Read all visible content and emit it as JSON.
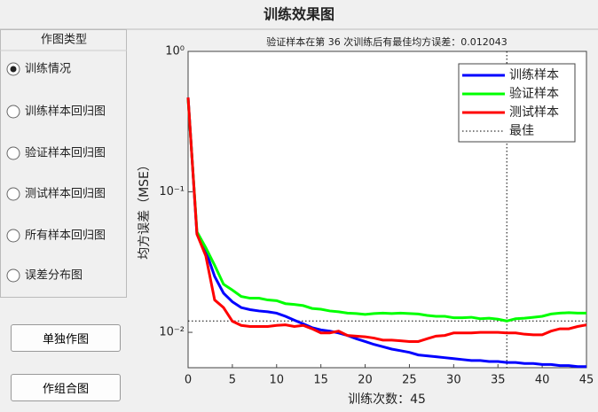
{
  "window_title": "训练效果图",
  "panel": {
    "title": "作图类型",
    "selected": 0,
    "options": [
      "训练情况",
      "训练样本回归图",
      "验证样本回归图",
      "测试样本回归图",
      "所有样本回归图",
      "误差分布图"
    ]
  },
  "buttons": [
    "单独作图",
    "作组合图"
  ],
  "chart_data": {
    "type": "line",
    "title": "验证样本在第 36 次训练后有最佳均方误差：0.012043",
    "x_label": "训练次数：45",
    "y_label": "均方误差（MSE）",
    "y_scale": "log",
    "x": [
      0,
      1,
      2,
      3,
      4,
      5,
      6,
      7,
      8,
      9,
      10,
      11,
      12,
      13,
      14,
      15,
      16,
      17,
      18,
      19,
      20,
      21,
      22,
      23,
      24,
      25,
      26,
      27,
      28,
      29,
      30,
      31,
      32,
      33,
      34,
      35,
      36,
      37,
      38,
      39,
      40,
      41,
      42,
      43,
      44,
      45
    ],
    "series": [
      {
        "name": "训练样本",
        "color": "#0000ff",
        "values": [
          0.47,
          0.05,
          0.038,
          0.025,
          0.019,
          0.0165,
          0.015,
          0.0145,
          0.0142,
          0.014,
          0.0137,
          0.013,
          0.0122,
          0.0115,
          0.0108,
          0.0104,
          0.0102,
          0.0099,
          0.0095,
          0.009,
          0.0086,
          0.0082,
          0.0079,
          0.0076,
          0.0074,
          0.0072,
          0.0069,
          0.0068,
          0.0067,
          0.0066,
          0.0065,
          0.0064,
          0.0063,
          0.0063,
          0.0062,
          0.0062,
          0.0061,
          0.0061,
          0.006,
          0.006,
          0.0059,
          0.0059,
          0.0058,
          0.0058,
          0.0057,
          0.0057
        ]
      },
      {
        "name": "验证样本",
        "color": "#00ff00",
        "values": [
          0.46,
          0.052,
          0.04,
          0.03,
          0.022,
          0.02,
          0.018,
          0.0175,
          0.0175,
          0.017,
          0.0168,
          0.016,
          0.0158,
          0.0155,
          0.0148,
          0.0146,
          0.0142,
          0.014,
          0.0137,
          0.0136,
          0.0134,
          0.0136,
          0.0137,
          0.0136,
          0.0137,
          0.0136,
          0.0135,
          0.0132,
          0.013,
          0.013,
          0.0127,
          0.0127,
          0.0128,
          0.0125,
          0.0126,
          0.0124,
          0.012043,
          0.0125,
          0.0126,
          0.0128,
          0.013,
          0.0135,
          0.0137,
          0.0138,
          0.0137,
          0.0137
        ]
      },
      {
        "name": "测试样本",
        "color": "#ff0000",
        "values": [
          0.47,
          0.05,
          0.035,
          0.017,
          0.015,
          0.012,
          0.0112,
          0.011,
          0.011,
          0.011,
          0.0112,
          0.0113,
          0.011,
          0.0112,
          0.0106,
          0.0099,
          0.0099,
          0.0102,
          0.0095,
          0.0094,
          0.0093,
          0.0091,
          0.0088,
          0.0088,
          0.0087,
          0.0086,
          0.0086,
          0.009,
          0.0094,
          0.0095,
          0.0099,
          0.0099,
          0.0099,
          0.01,
          0.01,
          0.01,
          0.0099,
          0.0099,
          0.0097,
          0.0096,
          0.0096,
          0.0102,
          0.0106,
          0.0106,
          0.011,
          0.0113
        ]
      }
    ],
    "best": {
      "name": "最佳",
      "x": 36,
      "y": 0.012043,
      "color": "#000000"
    },
    "xlim": [
      0,
      45
    ],
    "xticks": [
      0,
      5,
      10,
      15,
      20,
      25,
      30,
      35,
      40,
      45
    ],
    "ylim": [
      0.0056,
      1
    ],
    "yticks": [
      {
        "value": 1,
        "label": "10⁰"
      },
      {
        "value": 0.1,
        "label": "10⁻¹"
      },
      {
        "value": 0.01,
        "label": "10⁻²"
      }
    ],
    "legend": "upper right"
  }
}
